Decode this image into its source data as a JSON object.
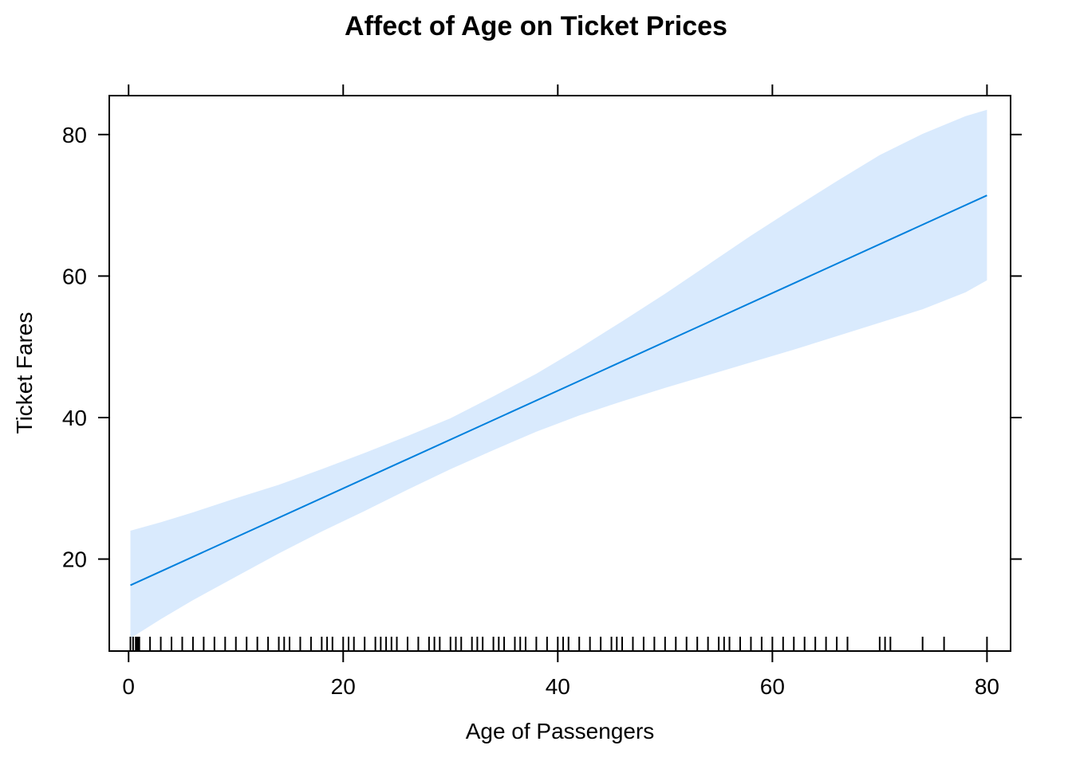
{
  "chart_data": {
    "type": "line",
    "title": "Affect of Age on Ticket Prices",
    "xlabel": "Age of Passengers",
    "ylabel": "Ticket Fares",
    "xlim": [
      -1.8,
      82.2
    ],
    "ylim": [
      7,
      85.5
    ],
    "x_ticks": [
      0,
      20,
      40,
      60,
      80
    ],
    "y_ticks": [
      20,
      40,
      60,
      80
    ],
    "grid": false,
    "legend": "none",
    "colors": {
      "line": "#0080dd",
      "band": "#d9eafd",
      "axis": "#000000"
    },
    "series": [
      {
        "x": [
          0.17,
          80
        ],
        "y": [
          16.3,
          71.4
        ]
      }
    ],
    "confidence_band": {
      "x": [
        0.17,
        3,
        6,
        10,
        14,
        18,
        22,
        26,
        30,
        34,
        38,
        42,
        46,
        50,
        54,
        58,
        62,
        66,
        70,
        74,
        78,
        80
      ],
      "upper": [
        24.0,
        25.2,
        26.6,
        28.6,
        30.5,
        32.7,
        35.0,
        37.4,
        39.9,
        43.0,
        46.2,
        49.8,
        53.6,
        57.5,
        61.6,
        65.7,
        69.6,
        73.4,
        77.1,
        80.1,
        82.6,
        83.5
      ],
      "lower": [
        8.8,
        11.5,
        14.2,
        17.5,
        20.8,
        23.9,
        26.8,
        29.8,
        32.7,
        35.4,
        38.0,
        40.3,
        42.3,
        44.2,
        46.0,
        47.8,
        49.6,
        51.5,
        53.4,
        55.3,
        57.7,
        59.4
      ]
    },
    "rug_x": [
      0.17,
      0.42,
      0.67,
      0.75,
      0.83,
      0.92,
      1,
      2,
      3,
      4,
      5,
      6,
      7,
      8,
      9,
      10,
      11,
      12,
      13,
      14,
      14.5,
      15,
      16,
      17,
      18,
      18.5,
      19,
      20,
      20.5,
      21,
      22,
      23,
      23.5,
      24,
      24.5,
      25,
      26,
      27,
      28,
      28.5,
      29,
      30,
      30.5,
      31,
      32,
      32.5,
      33,
      34,
      34.5,
      35,
      36,
      36.5,
      37,
      38,
      39,
      40,
      40.5,
      41,
      42,
      43,
      44,
      45,
      45.5,
      46,
      47,
      48,
      49,
      50,
      51,
      52,
      53,
      54,
      55,
      55.5,
      56,
      57,
      58,
      59,
      60,
      61,
      62,
      63,
      64,
      65,
      66,
      67,
      70,
      70.5,
      71,
      74,
      76,
      80
    ]
  }
}
